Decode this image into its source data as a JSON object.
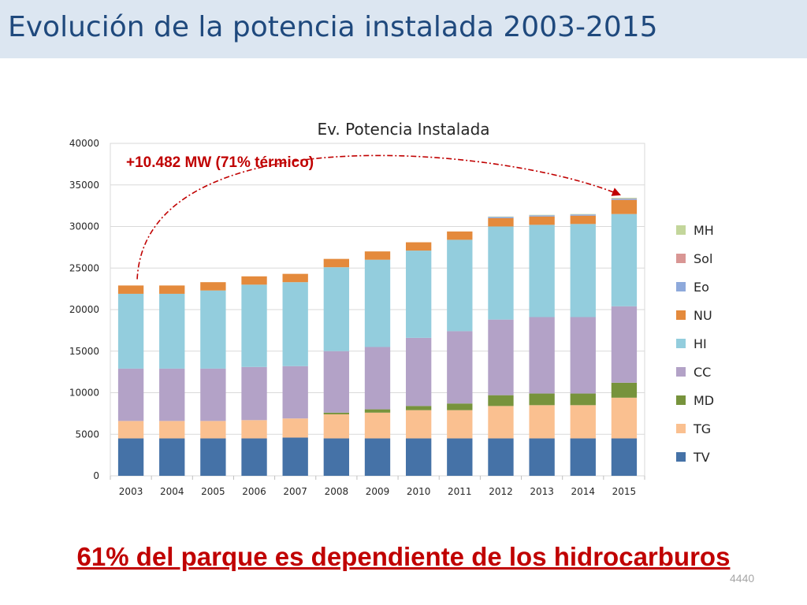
{
  "slide": {
    "title": "Evolución de la potencia instalada 2003-2015",
    "footer": "61% del parque es dependiente de los hidrocarburos",
    "slide_number": "4440"
  },
  "chart_data": {
    "type": "bar",
    "stacked": true,
    "title": "Ev. Potencia Instalada",
    "xlabel": "",
    "ylabel": "",
    "ylim": [
      0,
      40000
    ],
    "yticks": [
      0,
      5000,
      10000,
      15000,
      20000,
      25000,
      30000,
      35000,
      40000
    ],
    "grid": true,
    "legend_position": "right",
    "categories": [
      "2003",
      "2004",
      "2005",
      "2006",
      "2007",
      "2008",
      "2009",
      "2010",
      "2011",
      "2012",
      "2013",
      "2014",
      "2015"
    ],
    "series": [
      {
        "name": "TV",
        "color": "#4572a7",
        "values": [
          4500,
          4500,
          4500,
          4500,
          4600,
          4500,
          4500,
          4500,
          4500,
          4500,
          4500,
          4500,
          4500
        ]
      },
      {
        "name": "TG",
        "color": "#fac090",
        "values": [
          2100,
          2100,
          2100,
          2200,
          2300,
          2900,
          3100,
          3400,
          3400,
          3900,
          4000,
          4000,
          4900
        ]
      },
      {
        "name": "MD",
        "color": "#77933c",
        "values": [
          0,
          0,
          0,
          0,
          0,
          200,
          400,
          500,
          800,
          1300,
          1400,
          1400,
          1800
        ]
      },
      {
        "name": "CC",
        "color": "#b3a2c7",
        "values": [
          6300,
          6300,
          6300,
          6400,
          6300,
          7400,
          7500,
          8200,
          8700,
          9100,
          9200,
          9200,
          9200
        ]
      },
      {
        "name": "HI",
        "color": "#93cddd",
        "values": [
          9000,
          9000,
          9400,
          9900,
          10100,
          10100,
          10500,
          10500,
          11000,
          11200,
          11100,
          11200,
          11100
        ]
      },
      {
        "name": "NU",
        "color": "#e48a3c",
        "values": [
          1000,
          1000,
          1000,
          1000,
          1000,
          1000,
          1000,
          1000,
          1000,
          1000,
          1000,
          1000,
          1700
        ]
      },
      {
        "name": "Eo",
        "color": "#8ea9db",
        "values": [
          0,
          0,
          0,
          0,
          0,
          0,
          0,
          0,
          0,
          150,
          150,
          150,
          150
        ]
      },
      {
        "name": "Sol",
        "color": "#d99694",
        "values": [
          0,
          0,
          0,
          0,
          0,
          0,
          0,
          0,
          0,
          0,
          0,
          0,
          30
        ]
      },
      {
        "name": "MH",
        "color": "#c3d69b",
        "values": [
          0,
          0,
          0,
          0,
          0,
          0,
          0,
          0,
          0,
          50,
          50,
          50,
          80
        ]
      }
    ],
    "annotations": [
      {
        "text": "+10.482 MW (71% térmico)",
        "color": "#c00000",
        "from_category": "2003",
        "to_category": "2015"
      }
    ]
  }
}
